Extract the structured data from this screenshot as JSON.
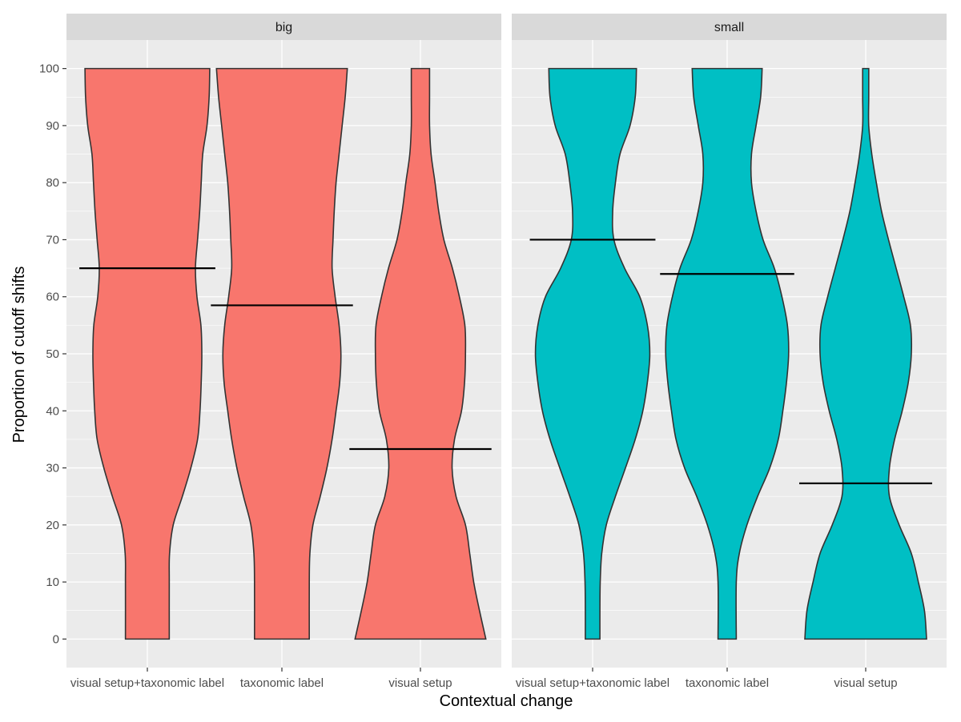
{
  "chart_data": {
    "type": "violin",
    "xlabel": "Contextual change",
    "ylabel": "Proportion of cutoff shifts",
    "ylim": [
      -5,
      105
    ],
    "y_ticks": [
      0,
      10,
      20,
      30,
      40,
      50,
      60,
      70,
      80,
      90,
      100
    ],
    "categories": [
      "visual setup+taxonomic label",
      "taxonomic label",
      "visual setup"
    ],
    "grid": true,
    "legend": "none",
    "colors": {
      "big": "#F8766D",
      "small": "#00BFC4",
      "panel_bg": "#EBEBEB",
      "strip_bg": "#D9D9D9",
      "grid": "#FFFFFF",
      "outline": "#333333"
    },
    "panels": [
      {
        "label": "big",
        "violins": [
          {
            "category": "visual setup+taxonomic label",
            "median": 65,
            "profile": [
              [
                0,
                7.2
              ],
              [
                10,
                7.2
              ],
              [
                15,
                7.3
              ],
              [
                20,
                8.5
              ],
              [
                25,
                11.5
              ],
              [
                30,
                14.3
              ],
              [
                35,
                16.5
              ],
              [
                40,
                17.3
              ],
              [
                45,
                17.7
              ],
              [
                50,
                17.9
              ],
              [
                55,
                17.6
              ],
              [
                60,
                16.3
              ],
              [
                65,
                15.8
              ],
              [
                70,
                16.5
              ],
              [
                75,
                17.2
              ],
              [
                80,
                17.7
              ],
              [
                85,
                18.2
              ],
              [
                90,
                19.6
              ],
              [
                95,
                20.3
              ],
              [
                100,
                20.5
              ]
            ]
          },
          {
            "category": "taxonomic label",
            "median": 58.5,
            "profile": [
              [
                0,
                9.0
              ],
              [
                10,
                9.0
              ],
              [
                15,
                9.2
              ],
              [
                20,
                10.2
              ],
              [
                25,
                12.6
              ],
              [
                30,
                14.8
              ],
              [
                35,
                16.5
              ],
              [
                40,
                17.8
              ],
              [
                45,
                19.0
              ],
              [
                50,
                19.4
              ],
              [
                55,
                18.8
              ],
              [
                60,
                17.5
              ],
              [
                65,
                16.5
              ],
              [
                70,
                16.8
              ],
              [
                75,
                17.2
              ],
              [
                80,
                17.8
              ],
              [
                85,
                18.8
              ],
              [
                90,
                19.8
              ],
              [
                95,
                20.8
              ],
              [
                100,
                21.5
              ]
            ]
          },
          {
            "category": "visual setup",
            "median": 33.3,
            "profile": [
              [
                0,
                21.5
              ],
              [
                5,
                19.4
              ],
              [
                10,
                17.5
              ],
              [
                15,
                16.2
              ],
              [
                20,
                14.8
              ],
              [
                25,
                11.7
              ],
              [
                30,
                10.4
              ],
              [
                35,
                11.2
              ],
              [
                40,
                13.5
              ],
              [
                45,
                14.5
              ],
              [
                50,
                14.8
              ],
              [
                55,
                14.6
              ],
              [
                60,
                12.8
              ],
              [
                65,
                10.5
              ],
              [
                70,
                7.7
              ],
              [
                75,
                6.0
              ],
              [
                80,
                4.8
              ],
              [
                85,
                3.5
              ],
              [
                90,
                3.0
              ],
              [
                95,
                3.0
              ],
              [
                100,
                3.0
              ]
            ]
          }
        ]
      },
      {
        "label": "small",
        "violins": [
          {
            "category": "visual setup+taxonomic label",
            "median": 70,
            "profile": [
              [
                0,
                2.4
              ],
              [
                5,
                2.4
              ],
              [
                10,
                2.5
              ],
              [
                15,
                3.0
              ],
              [
                20,
                4.5
              ],
              [
                25,
                7.5
              ],
              [
                30,
                10.8
              ],
              [
                35,
                14.0
              ],
              [
                40,
                16.5
              ],
              [
                45,
                18.0
              ],
              [
                50,
                18.8
              ],
              [
                55,
                18.0
              ],
              [
                60,
                15.5
              ],
              [
                65,
                10.5
              ],
              [
                70,
                7.0
              ],
              [
                75,
                6.6
              ],
              [
                80,
                7.5
              ],
              [
                85,
                9.0
              ],
              [
                90,
                12.3
              ],
              [
                95,
                14.0
              ],
              [
                100,
                14.4
              ]
            ]
          },
          {
            "category": "taxonomic label",
            "median": 64,
            "profile": [
              [
                0,
                3.0
              ],
              [
                10,
                3.0
              ],
              [
                15,
                4.0
              ],
              [
                20,
                6.5
              ],
              [
                25,
                10.0
              ],
              [
                30,
                14.0
              ],
              [
                35,
                16.8
              ],
              [
                40,
                18.3
              ],
              [
                45,
                19.5
              ],
              [
                50,
                20.2
              ],
              [
                55,
                19.8
              ],
              [
                60,
                18.0
              ],
              [
                65,
                15.5
              ],
              [
                70,
                11.8
              ],
              [
                75,
                9.5
              ],
              [
                80,
                8.0
              ],
              [
                85,
                8.0
              ],
              [
                90,
                9.5
              ],
              [
                95,
                11.0
              ],
              [
                100,
                11.5
              ]
            ]
          },
          {
            "category": "visual setup",
            "median": 27.3,
            "profile": [
              [
                0,
                20.0
              ],
              [
                5,
                19.3
              ],
              [
                10,
                17.3
              ],
              [
                15,
                15.0
              ],
              [
                20,
                11.0
              ],
              [
                25,
                7.8
              ],
              [
                30,
                7.8
              ],
              [
                35,
                9.5
              ],
              [
                40,
                12.0
              ],
              [
                45,
                14.0
              ],
              [
                50,
                15.0
              ],
              [
                55,
                14.7
              ],
              [
                60,
                12.5
              ],
              [
                65,
                10.0
              ],
              [
                70,
                7.5
              ],
              [
                75,
                5.2
              ],
              [
                80,
                3.5
              ],
              [
                85,
                2.0
              ],
              [
                90,
                1.0
              ],
              [
                95,
                1.0
              ],
              [
                100,
                1.0
              ]
            ]
          }
        ]
      }
    ]
  }
}
